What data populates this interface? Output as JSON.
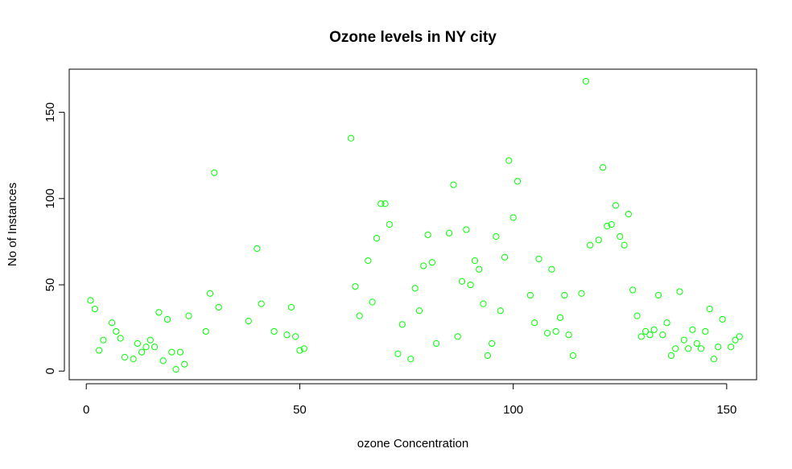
{
  "chart_data": {
    "type": "scatter",
    "title": "Ozone levels in NY city",
    "xlabel": "ozone Concentration",
    "ylabel": "No of Instances",
    "xlim": [
      -4,
      157
    ],
    "ylim": [
      -5,
      175
    ],
    "x_ticks": [
      0,
      50,
      100,
      150
    ],
    "y_ticks": [
      0,
      50,
      100,
      150
    ],
    "grid": false,
    "legend": "none",
    "point_color": "#00ff00",
    "points": [
      [
        1,
        41
      ],
      [
        2,
        36
      ],
      [
        3,
        12
      ],
      [
        4,
        18
      ],
      [
        6,
        28
      ],
      [
        7,
        23
      ],
      [
        8,
        19
      ],
      [
        9,
        8
      ],
      [
        11,
        7
      ],
      [
        12,
        16
      ],
      [
        13,
        11
      ],
      [
        14,
        14
      ],
      [
        15,
        18
      ],
      [
        16,
        14
      ],
      [
        17,
        34
      ],
      [
        18,
        6
      ],
      [
        19,
        30
      ],
      [
        20,
        11
      ],
      [
        21,
        1
      ],
      [
        22,
        11
      ],
      [
        23,
        4
      ],
      [
        24,
        32
      ],
      [
        28,
        23
      ],
      [
        29,
        45
      ],
      [
        30,
        115
      ],
      [
        31,
        37
      ],
      [
        38,
        29
      ],
      [
        40,
        71
      ],
      [
        41,
        39
      ],
      [
        44,
        23
      ],
      [
        47,
        21
      ],
      [
        48,
        37
      ],
      [
        49,
        20
      ],
      [
        50,
        12
      ],
      [
        51,
        13
      ],
      [
        62,
        135
      ],
      [
        63,
        49
      ],
      [
        64,
        32
      ],
      [
        66,
        64
      ],
      [
        67,
        40
      ],
      [
        68,
        77
      ],
      [
        69,
        97
      ],
      [
        70,
        97
      ],
      [
        71,
        85
      ],
      [
        73,
        10
      ],
      [
        74,
        27
      ],
      [
        76,
        7
      ],
      [
        77,
        48
      ],
      [
        78,
        35
      ],
      [
        79,
        61
      ],
      [
        80,
        79
      ],
      [
        81,
        63
      ],
      [
        82,
        16
      ],
      [
        85,
        80
      ],
      [
        86,
        108
      ],
      [
        87,
        20
      ],
      [
        88,
        52
      ],
      [
        89,
        82
      ],
      [
        90,
        50
      ],
      [
        91,
        64
      ],
      [
        92,
        59
      ],
      [
        93,
        39
      ],
      [
        94,
        9
      ],
      [
        95,
        16
      ],
      [
        96,
        78
      ],
      [
        97,
        35
      ],
      [
        98,
        66
      ],
      [
        99,
        122
      ],
      [
        100,
        89
      ],
      [
        101,
        110
      ],
      [
        104,
        44
      ],
      [
        105,
        28
      ],
      [
        106,
        65
      ],
      [
        108,
        22
      ],
      [
        109,
        59
      ],
      [
        110,
        23
      ],
      [
        111,
        31
      ],
      [
        112,
        44
      ],
      [
        113,
        21
      ],
      [
        114,
        9
      ],
      [
        116,
        45
      ],
      [
        117,
        168
      ],
      [
        118,
        73
      ],
      [
        120,
        76
      ],
      [
        121,
        118
      ],
      [
        122,
        84
      ],
      [
        123,
        85
      ],
      [
        124,
        96
      ],
      [
        125,
        78
      ],
      [
        126,
        73
      ],
      [
        127,
        91
      ],
      [
        128,
        47
      ],
      [
        129,
        32
      ],
      [
        130,
        20
      ],
      [
        131,
        23
      ],
      [
        132,
        21
      ],
      [
        133,
        24
      ],
      [
        134,
        44
      ],
      [
        135,
        21
      ],
      [
        136,
        28
      ],
      [
        137,
        9
      ],
      [
        138,
        13
      ],
      [
        139,
        46
      ],
      [
        140,
        18
      ],
      [
        141,
        13
      ],
      [
        142,
        24
      ],
      [
        143,
        16
      ],
      [
        144,
        13
      ],
      [
        145,
        23
      ],
      [
        146,
        36
      ],
      [
        147,
        7
      ],
      [
        148,
        14
      ],
      [
        149,
        30
      ],
      [
        151,
        14
      ],
      [
        152,
        18
      ],
      [
        153,
        20
      ]
    ]
  }
}
